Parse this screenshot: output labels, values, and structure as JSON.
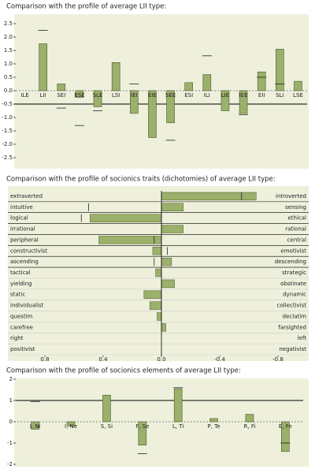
{
  "chart_data": [
    {
      "type": "bar",
      "title": "Comparison with the profile of average LII type:",
      "categories": [
        "ILE",
        "LII",
        "SEI",
        "ESE",
        "SLE",
        "LSI",
        "IEI",
        "EIE",
        "SEE",
        "ESI",
        "ILI",
        "LIE",
        "IEE",
        "EII",
        "SLI",
        "LSE"
      ],
      "values": [
        0,
        1.75,
        0.25,
        -0.25,
        -0.6,
        1.05,
        -0.85,
        -1.75,
        -1.2,
        0.3,
        0.6,
        -0.75,
        -0.85,
        0.7,
        1.55,
        0.35
      ],
      "markers": [
        null,
        2.25,
        -0.65,
        -1.3,
        -0.75,
        null,
        0.25,
        null,
        -1.85,
        null,
        1.3,
        null,
        -0.9,
        0.5,
        0.25,
        null
      ],
      "reference_line": -0.5,
      "color": "#9bb06a",
      "ylim": [
        -2.5,
        2.5
      ],
      "yticks": [
        2.5,
        {
          "value": 2,
          "label": "2.0"
        },
        1.5,
        {
          "value": 1,
          "label": "1.0"
        },
        0.5,
        {
          "value": 0,
          "label": "0.0"
        },
        -0.5,
        {
          "value": -1,
          "label": "-1.0"
        },
        -1.5,
        {
          "value": -2,
          "label": "-2.0"
        },
        -2.5
      ]
    },
    {
      "type": "hbar",
      "title": "Comparison with the profile of socionics traits (dichotomies) of average LII type:",
      "categories": [
        "extraverted",
        "intuitive",
        "logical",
        "irrational",
        "peripheral",
        "constructivist",
        "ascending",
        "tactical",
        "yielding",
        "static",
        "individualist",
        "questim",
        "carefree",
        "right",
        "positivist"
      ],
      "right_categories": [
        "introverted",
        "sensing",
        "ethical",
        "rational",
        "central",
        "emotivist",
        "descending",
        "strategic",
        "obstinate",
        "dynamic",
        "collectivist",
        "declatim",
        "farsighted",
        "left",
        "negativist"
      ],
      "values": [
        -0.65,
        -0.15,
        0.49,
        -0.15,
        0.43,
        0.06,
        -0.07,
        0.04,
        -0.09,
        0.12,
        0.08,
        0.03,
        -0.03,
        0,
        0
      ],
      "markers": [
        -0.55,
        0.5,
        0.55,
        null,
        0.05,
        -0.04,
        0.05,
        null,
        null,
        null,
        null,
        null,
        null,
        null,
        null
      ],
      "color": "#9bb06a",
      "xlim": [
        0.8,
        -0.8
      ],
      "xticks": [
        0.8,
        0.4,
        {
          "value": 0,
          "label": "0.0"
        },
        -0.4,
        -0.8
      ]
    },
    {
      "type": "bar",
      "title": "Comparison with the profile of socionics elements of average LII type:",
      "categories": [
        "I, Ni",
        "I, Ne",
        "S, Si",
        "F, Se",
        "L, Ti",
        "P, Te",
        "R, Fi",
        "E, Fe"
      ],
      "values": [
        -0.35,
        -0.2,
        1.25,
        -1.1,
        1.55,
        0.15,
        0.35,
        -1.4
      ],
      "markers": [
        0.95,
        null,
        null,
        -1.5,
        1.6,
        null,
        null,
        -1.0
      ],
      "reference_line": 1,
      "color": "#9bb06a",
      "ylim": [
        -2,
        2
      ],
      "yticks": [
        2,
        1,
        0,
        -1,
        -2
      ]
    }
  ]
}
